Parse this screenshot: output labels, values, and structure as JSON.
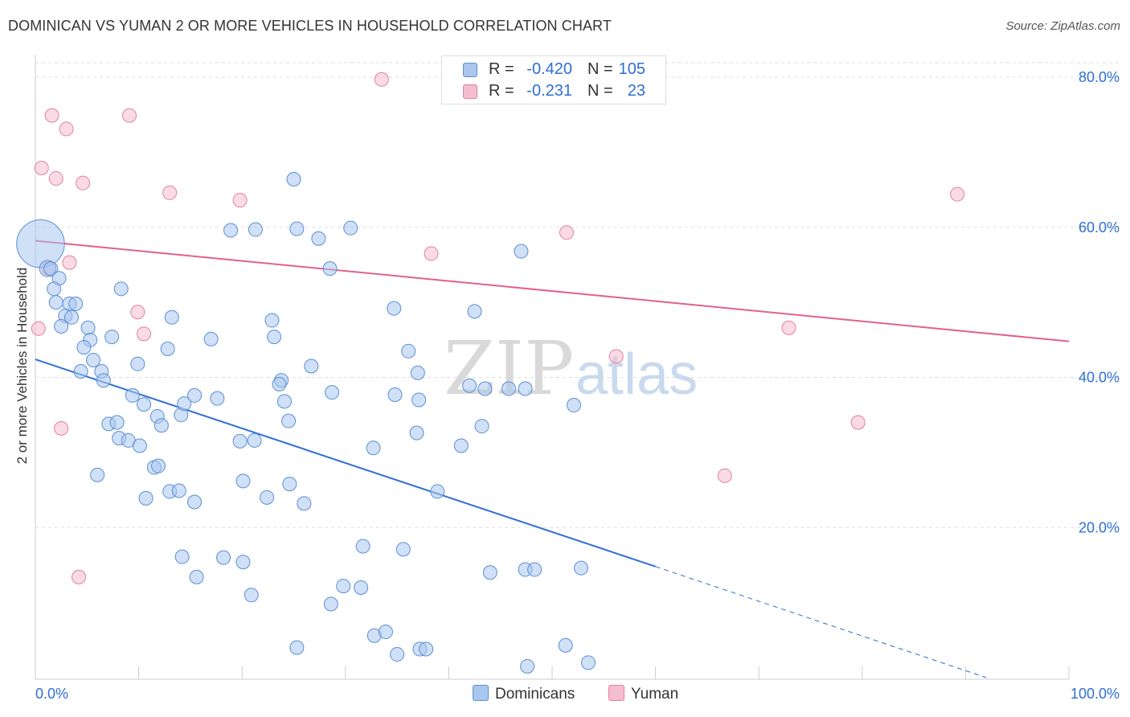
{
  "title": "DOMINICAN VS YUMAN 2 OR MORE VEHICLES IN HOUSEHOLD CORRELATION CHART",
  "source": "Source: ZipAtlas.com",
  "watermark": {
    "left": "ZIP",
    "right": "atlas"
  },
  "colors": {
    "blue_fill": "#a9c6ee",
    "blue_stroke": "#5b8fd6",
    "blue_line": "#2f6fd4",
    "pink_fill": "#f5bdd0",
    "pink_stroke": "#e27fa2",
    "pink_line": "#e2608d",
    "grid": "#dddddd",
    "axis_text": "#2f6fd4"
  },
  "legend": {
    "rows": [
      {
        "r_label": "R =",
        "r_value": "-0.420",
        "n_label": "N =",
        "n_value": "105"
      },
      {
        "r_label": "R =",
        "r_value": "-0.231",
        "n_label": "N =",
        "n_value": "23"
      }
    ]
  },
  "bottom_legend": {
    "series1": "Dominicans",
    "series2": "Yuman"
  },
  "chart_data": {
    "type": "scatter",
    "title": "DOMINICAN VS YUMAN 2 OR MORE VEHICLES IN HOUSEHOLD CORRELATION CHART",
    "xlabel": "",
    "ylabel": "2 or more Vehicles in Household",
    "xlim": [
      0,
      100
    ],
    "ylim": [
      0,
      80
    ],
    "x_tick_labels": [
      "0.0%",
      "100.0%"
    ],
    "y_tick_labels": [
      "20.0%",
      "40.0%",
      "60.0%",
      "80.0%"
    ],
    "y_tick_values": [
      20,
      40,
      60,
      80
    ],
    "legend_position": "top-center",
    "series": [
      {
        "name": "Dominicans",
        "r": -0.42,
        "n": 105,
        "trend": {
          "x0": 0,
          "y0": 42.4,
          "x1": 60,
          "y1": 14.8,
          "dashed_to_x": 92,
          "dashed_to_y": 0
        },
        "points": [
          [
            0.5,
            57.8,
            3.5
          ],
          [
            1.2,
            54.5,
            1.2
          ],
          [
            1.5,
            54.5,
            1
          ],
          [
            2.3,
            53.2,
            1
          ],
          [
            1.8,
            51.8,
            1
          ],
          [
            2.0,
            50.0,
            1
          ],
          [
            3.3,
            49.8,
            1
          ],
          [
            3.9,
            49.8,
            1
          ],
          [
            2.9,
            48.2,
            1
          ],
          [
            3.5,
            48.0,
            1
          ],
          [
            2.5,
            46.8,
            1
          ],
          [
            5.1,
            46.6,
            1
          ],
          [
            7.4,
            45.4,
            1
          ],
          [
            5.3,
            45.0,
            1
          ],
          [
            4.7,
            44.0,
            1
          ],
          [
            8.3,
            51.8,
            1
          ],
          [
            13.2,
            48.0,
            1
          ],
          [
            12.8,
            43.8,
            1
          ],
          [
            9.9,
            41.8,
            1
          ],
          [
            5.6,
            42.3,
            1
          ],
          [
            4.4,
            40.8,
            1
          ],
          [
            6.4,
            40.8,
            1
          ],
          [
            6.6,
            39.6,
            1
          ],
          [
            9.4,
            37.6,
            1
          ],
          [
            10.5,
            36.4,
            1
          ],
          [
            11.8,
            34.8,
            1
          ],
          [
            7.1,
            33.8,
            1
          ],
          [
            7.9,
            34.0,
            1
          ],
          [
            12.2,
            33.6,
            1
          ],
          [
            14.1,
            35.0,
            1
          ],
          [
            8.1,
            31.9,
            1
          ],
          [
            9.0,
            31.6,
            1
          ],
          [
            10.1,
            30.9,
            1
          ],
          [
            11.5,
            28.0,
            1
          ],
          [
            11.9,
            28.2,
            1
          ],
          [
            6.0,
            27.0,
            1
          ],
          [
            10.7,
            23.9,
            1
          ],
          [
            13.0,
            24.8,
            1
          ],
          [
            13.9,
            24.9,
            1
          ],
          [
            15.4,
            23.4,
            1
          ],
          [
            14.4,
            36.5,
            1
          ],
          [
            15.4,
            37.6,
            1
          ],
          [
            17.6,
            37.2,
            1
          ],
          [
            19.8,
            31.5,
            1
          ],
          [
            20.1,
            26.2,
            1
          ],
          [
            18.9,
            59.6,
            1
          ],
          [
            21.3,
            59.7,
            1
          ],
          [
            25.3,
            59.8,
            1
          ],
          [
            23.1,
            45.4,
            1
          ],
          [
            27.4,
            58.5,
            1
          ],
          [
            22.9,
            47.6,
            1
          ],
          [
            21.2,
            31.6,
            1
          ],
          [
            22.4,
            24.0,
            1
          ],
          [
            24.6,
            25.8,
            1
          ],
          [
            24.5,
            34.2,
            1
          ],
          [
            25.0,
            66.4,
            1
          ],
          [
            28.5,
            54.5,
            1
          ],
          [
            30.5,
            59.9,
            1
          ],
          [
            17.0,
            45.1,
            1
          ],
          [
            23.8,
            39.6,
            1
          ],
          [
            24.1,
            36.8,
            1
          ],
          [
            23.6,
            39.1,
            1
          ],
          [
            28.7,
            38.0,
            1
          ],
          [
            26.0,
            23.2,
            1
          ],
          [
            26.7,
            41.5,
            1
          ],
          [
            14.2,
            16.1,
            1
          ],
          [
            15.6,
            13.4,
            1
          ],
          [
            18.2,
            16.0,
            1
          ],
          [
            20.1,
            15.4,
            1
          ],
          [
            20.9,
            11.0,
            1
          ],
          [
            25.3,
            4.0,
            1
          ],
          [
            28.6,
            9.8,
            1
          ],
          [
            29.8,
            12.2,
            1
          ],
          [
            31.5,
            12.0,
            1
          ],
          [
            31.7,
            17.5,
            1
          ],
          [
            32.8,
            5.6,
            1
          ],
          [
            33.9,
            6.1,
            1
          ],
          [
            35.0,
            3.1,
            1
          ],
          [
            37.2,
            3.8,
            1
          ],
          [
            37.8,
            3.8,
            1
          ],
          [
            35.6,
            17.1,
            1
          ],
          [
            34.7,
            49.2,
            1
          ],
          [
            36.1,
            43.5,
            1
          ],
          [
            37.0,
            40.6,
            1
          ],
          [
            34.8,
            37.7,
            1
          ],
          [
            36.9,
            32.6,
            1
          ],
          [
            38.9,
            24.8,
            1
          ],
          [
            37.1,
            37.0,
            1
          ],
          [
            32.7,
            30.6,
            1
          ],
          [
            41.2,
            30.9,
            1
          ],
          [
            42.5,
            48.8,
            1
          ],
          [
            42.0,
            38.9,
            1
          ],
          [
            43.5,
            38.5,
            1
          ],
          [
            43.2,
            33.5,
            1
          ],
          [
            44.0,
            14.0,
            1
          ],
          [
            47.0,
            56.8,
            1
          ],
          [
            45.8,
            38.5,
            1
          ],
          [
            47.4,
            38.5,
            1
          ],
          [
            52.1,
            36.3,
            1
          ],
          [
            47.4,
            14.4,
            1
          ],
          [
            48.3,
            14.4,
            1
          ],
          [
            52.8,
            14.6,
            1
          ],
          [
            47.6,
            1.5,
            1
          ],
          [
            51.3,
            4.3,
            1
          ],
          [
            53.5,
            2.0,
            1
          ]
        ]
      },
      {
        "name": "Yuman",
        "r": -0.231,
        "n": 23,
        "trend": {
          "x0": 0,
          "y0": 58.2,
          "x1": 100,
          "y1": 44.8
        },
        "points": [
          [
            33.5,
            79.7,
            1
          ],
          [
            1.6,
            74.9,
            1
          ],
          [
            3.0,
            73.1,
            1
          ],
          [
            9.1,
            74.9,
            1
          ],
          [
            0.6,
            67.9,
            1
          ],
          [
            2.0,
            66.5,
            1
          ],
          [
            4.6,
            65.9,
            1
          ],
          [
            13.0,
            64.6,
            1
          ],
          [
            19.8,
            63.6,
            1
          ],
          [
            51.4,
            59.3,
            1
          ],
          [
            89.2,
            64.4,
            1
          ],
          [
            1.3,
            54.5,
            1
          ],
          [
            3.3,
            55.3,
            1
          ],
          [
            38.3,
            56.5,
            1
          ],
          [
            0.3,
            46.5,
            1
          ],
          [
            9.9,
            48.7,
            1
          ],
          [
            10.5,
            45.8,
            1
          ],
          [
            56.2,
            42.8,
            1
          ],
          [
            72.9,
            46.6,
            1
          ],
          [
            2.5,
            33.2,
            1
          ],
          [
            79.6,
            34.0,
            1
          ],
          [
            66.7,
            26.9,
            1
          ],
          [
            4.2,
            13.4,
            1
          ]
        ]
      }
    ]
  }
}
